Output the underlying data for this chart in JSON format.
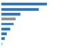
{
  "values": [
    17.5,
    14.2,
    7.2,
    5.5,
    4.8,
    3.5,
    2.2,
    1.4,
    0.6
  ],
  "bar_colors": [
    "#2771b8",
    "#2771b8",
    "#2771b8",
    "#8c8c8c",
    "#2771b8",
    "#2771b8",
    "#2771b8",
    "#2771b8",
    "#a8c8e8"
  ],
  "background_color": "#ffffff",
  "grid_color": "#c8c8c8",
  "xlim_max": 25,
  "figsize": [
    1.0,
    0.71
  ],
  "dpi": 100
}
